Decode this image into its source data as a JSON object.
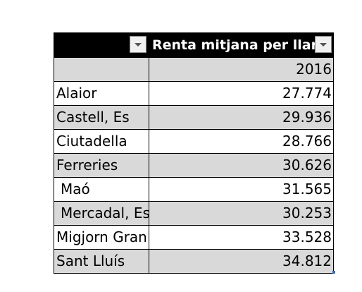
{
  "pivot": {
    "header": {
      "field_label": "Renta mitjana per llar"
    },
    "year_row": {
      "label": "",
      "year": "2016"
    },
    "rows": [
      {
        "name": "Alaior",
        "value": "27.774"
      },
      {
        "name": "Castell, Es",
        "value": "29.936"
      },
      {
        "name": "Ciutadella",
        "value": "28.766"
      },
      {
        "name": "Ferreries",
        "value": "30.626"
      },
      {
        "name": "Maó",
        "value": "31.565"
      },
      {
        "name": "Mercadal, Es",
        "value": "30.253"
      },
      {
        "name": "Migjorn Gran",
        "value": "33.528"
      },
      {
        "name": "Sant Lluís",
        "value": "34.812"
      }
    ],
    "icons": {
      "row_filter": "dropdown-arrow-icon",
      "column_filter": "dropdown-arrow-icon"
    },
    "colors": {
      "header_bg": "#000000",
      "header_text": "#ffffff",
      "shaded_row": "#d9d9d9"
    }
  }
}
